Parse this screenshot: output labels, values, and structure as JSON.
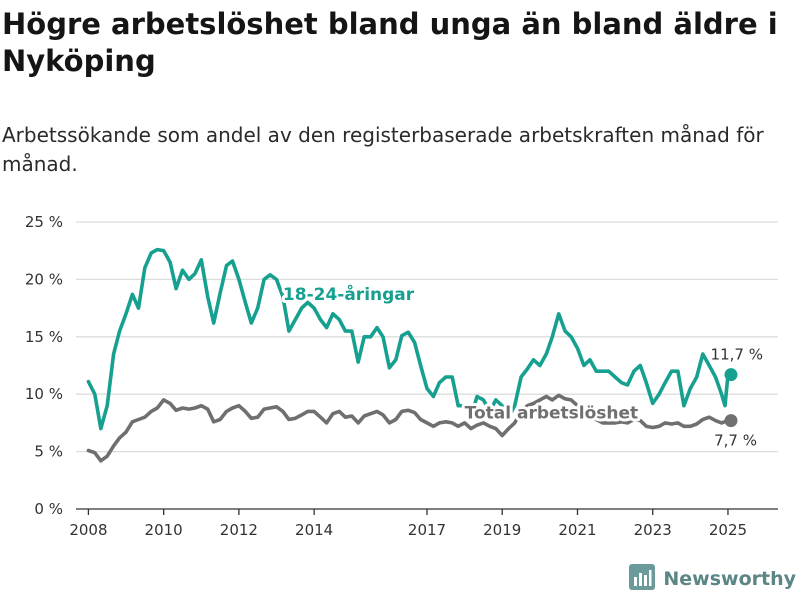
{
  "header": {
    "title": "Högre arbetslöshet bland unga än bland äldre i Nyköping",
    "subtitle": "Arbetssökande som andel av den registerbaserade arbetskraften månad för månad."
  },
  "brand": {
    "name": "Newsworthy",
    "logo_icon": "bar-chart-logo-icon"
  },
  "chart_data": {
    "type": "line",
    "title": "Högre arbetslöshet bland unga än bland äldre i Nyköping",
    "subtitle": "Arbetssökande som andel av den registerbaserade arbetskraften månad för månad.",
    "xlabel": "",
    "ylabel": "",
    "xlim": [
      2007.67,
      2026.33
    ],
    "ylim": [
      0,
      25
    ],
    "y_ticks": [
      0,
      5,
      10,
      15,
      20,
      25
    ],
    "y_tick_labels": [
      "0 %",
      "5 %",
      "10 %",
      "15 %",
      "20 %",
      "25 %"
    ],
    "x_ticks": [
      2008,
      2010,
      2012,
      2014,
      2017,
      2019,
      2021,
      2023,
      2025
    ],
    "x_tick_labels": [
      "2008",
      "2010",
      "2012",
      "2014",
      "2017",
      "2019",
      "2021",
      "2023",
      "2025"
    ],
    "grid": "horizontal",
    "legend": "inline labels",
    "series": [
      {
        "name": "18-24-åringar",
        "color": "#16a08f",
        "label": "18-24-åringar",
        "end_label": "11,7 %",
        "points": [
          [
            2008.0,
            11.1
          ],
          [
            2008.17,
            10.0
          ],
          [
            2008.33,
            7.0
          ],
          [
            2008.5,
            9.0
          ],
          [
            2008.67,
            13.5
          ],
          [
            2008.83,
            15.5
          ],
          [
            2009.0,
            17.0
          ],
          [
            2009.17,
            18.7
          ],
          [
            2009.33,
            17.5
          ],
          [
            2009.5,
            21.0
          ],
          [
            2009.67,
            22.3
          ],
          [
            2009.83,
            22.6
          ],
          [
            2010.0,
            22.5
          ],
          [
            2010.17,
            21.5
          ],
          [
            2010.33,
            19.2
          ],
          [
            2010.5,
            20.8
          ],
          [
            2010.67,
            20.0
          ],
          [
            2010.83,
            20.5
          ],
          [
            2011.0,
            21.7
          ],
          [
            2011.17,
            18.5
          ],
          [
            2011.33,
            16.2
          ],
          [
            2011.5,
            18.8
          ],
          [
            2011.67,
            21.2
          ],
          [
            2011.83,
            21.6
          ],
          [
            2012.0,
            20.0
          ],
          [
            2012.17,
            18.0
          ],
          [
            2012.33,
            16.2
          ],
          [
            2012.5,
            17.5
          ],
          [
            2012.67,
            20.0
          ],
          [
            2012.83,
            20.4
          ],
          [
            2013.0,
            20.0
          ],
          [
            2013.17,
            18.5
          ],
          [
            2013.33,
            15.5
          ],
          [
            2013.5,
            16.5
          ],
          [
            2013.67,
            17.5
          ],
          [
            2013.83,
            18.0
          ],
          [
            2014.0,
            17.5
          ],
          [
            2014.17,
            16.5
          ],
          [
            2014.33,
            15.8
          ],
          [
            2014.5,
            17.0
          ],
          [
            2014.67,
            16.5
          ],
          [
            2014.83,
            15.5
          ],
          [
            2015.0,
            15.5
          ],
          [
            2015.17,
            12.8
          ],
          [
            2015.33,
            15.0
          ],
          [
            2015.5,
            15.0
          ],
          [
            2015.67,
            15.8
          ],
          [
            2015.83,
            15.0
          ],
          [
            2016.0,
            12.3
          ],
          [
            2016.17,
            13.0
          ],
          [
            2016.33,
            15.1
          ],
          [
            2016.5,
            15.4
          ],
          [
            2016.67,
            14.5
          ],
          [
            2016.83,
            12.5
          ],
          [
            2017.0,
            10.5
          ],
          [
            2017.17,
            9.8
          ],
          [
            2017.33,
            11.0
          ],
          [
            2017.5,
            11.5
          ],
          [
            2017.67,
            11.5
          ],
          [
            2017.83,
            9.0
          ],
          [
            2018.0,
            9.0
          ],
          [
            2018.17,
            8.0
          ],
          [
            2018.33,
            9.8
          ],
          [
            2018.5,
            9.5
          ],
          [
            2018.67,
            8.5
          ],
          [
            2018.83,
            9.5
          ],
          [
            2019.0,
            9.0
          ],
          [
            2019.17,
            8.0
          ],
          [
            2019.33,
            9.0
          ],
          [
            2019.5,
            11.5
          ],
          [
            2019.67,
            12.2
          ],
          [
            2019.83,
            13.0
          ],
          [
            2020.0,
            12.5
          ],
          [
            2020.17,
            13.5
          ],
          [
            2020.33,
            15.0
          ],
          [
            2020.5,
            17.0
          ],
          [
            2020.67,
            15.5
          ],
          [
            2020.83,
            15.0
          ],
          [
            2021.0,
            14.0
          ],
          [
            2021.17,
            12.5
          ],
          [
            2021.33,
            13.0
          ],
          [
            2021.5,
            12.0
          ],
          [
            2021.67,
            12.0
          ],
          [
            2021.83,
            12.0
          ],
          [
            2022.0,
            11.5
          ],
          [
            2022.17,
            11.0
          ],
          [
            2022.33,
            10.8
          ],
          [
            2022.5,
            12.0
          ],
          [
            2022.67,
            12.5
          ],
          [
            2022.83,
            11.0
          ],
          [
            2023.0,
            9.2
          ],
          [
            2023.17,
            10.0
          ],
          [
            2023.33,
            11.0
          ],
          [
            2023.5,
            12.0
          ],
          [
            2023.67,
            12.0
          ],
          [
            2023.83,
            9.0
          ],
          [
            2024.0,
            10.5
          ],
          [
            2024.17,
            11.5
          ],
          [
            2024.33,
            13.5
          ],
          [
            2024.5,
            12.5
          ],
          [
            2024.67,
            11.5
          ],
          [
            2024.83,
            10.0
          ],
          [
            2024.92,
            9.0
          ],
          [
            2025.0,
            11.7
          ],
          [
            2025.08,
            11.7
          ]
        ]
      },
      {
        "name": "Total arbetslöshet",
        "color": "#6f6f6f",
        "label": "Total arbetslöshet",
        "end_label": "7,7 %",
        "points": [
          [
            2008.0,
            5.1
          ],
          [
            2008.17,
            4.9
          ],
          [
            2008.33,
            4.2
          ],
          [
            2008.5,
            4.6
          ],
          [
            2008.67,
            5.5
          ],
          [
            2008.83,
            6.2
          ],
          [
            2009.0,
            6.7
          ],
          [
            2009.17,
            7.6
          ],
          [
            2009.33,
            7.8
          ],
          [
            2009.5,
            8.0
          ],
          [
            2009.67,
            8.5
          ],
          [
            2009.83,
            8.8
          ],
          [
            2010.0,
            9.5
          ],
          [
            2010.17,
            9.2
          ],
          [
            2010.33,
            8.6
          ],
          [
            2010.5,
            8.8
          ],
          [
            2010.67,
            8.7
          ],
          [
            2010.83,
            8.8
          ],
          [
            2011.0,
            9.0
          ],
          [
            2011.17,
            8.7
          ],
          [
            2011.33,
            7.6
          ],
          [
            2011.5,
            7.8
          ],
          [
            2011.67,
            8.5
          ],
          [
            2011.83,
            8.8
          ],
          [
            2012.0,
            9.0
          ],
          [
            2012.17,
            8.5
          ],
          [
            2012.33,
            7.9
          ],
          [
            2012.5,
            8.0
          ],
          [
            2012.67,
            8.7
          ],
          [
            2012.83,
            8.8
          ],
          [
            2013.0,
            8.9
          ],
          [
            2013.17,
            8.5
          ],
          [
            2013.33,
            7.8
          ],
          [
            2013.5,
            7.9
          ],
          [
            2013.67,
            8.2
          ],
          [
            2013.83,
            8.5
          ],
          [
            2014.0,
            8.5
          ],
          [
            2014.17,
            8.0
          ],
          [
            2014.33,
            7.5
          ],
          [
            2014.5,
            8.3
          ],
          [
            2014.67,
            8.5
          ],
          [
            2014.83,
            8.0
          ],
          [
            2015.0,
            8.1
          ],
          [
            2015.17,
            7.5
          ],
          [
            2015.33,
            8.1
          ],
          [
            2015.5,
            8.3
          ],
          [
            2015.67,
            8.5
          ],
          [
            2015.83,
            8.2
          ],
          [
            2016.0,
            7.5
          ],
          [
            2016.17,
            7.8
          ],
          [
            2016.33,
            8.5
          ],
          [
            2016.5,
            8.6
          ],
          [
            2016.67,
            8.4
          ],
          [
            2016.83,
            7.8
          ],
          [
            2017.0,
            7.5
          ],
          [
            2017.17,
            7.2
          ],
          [
            2017.33,
            7.5
          ],
          [
            2017.5,
            7.6
          ],
          [
            2017.67,
            7.5
          ],
          [
            2017.83,
            7.2
          ],
          [
            2018.0,
            7.5
          ],
          [
            2018.17,
            7.0
          ],
          [
            2018.33,
            7.3
          ],
          [
            2018.5,
            7.5
          ],
          [
            2018.67,
            7.2
          ],
          [
            2018.83,
            7.0
          ],
          [
            2019.0,
            6.4
          ],
          [
            2019.17,
            7.0
          ],
          [
            2019.33,
            7.5
          ],
          [
            2019.5,
            8.5
          ],
          [
            2019.67,
            9.0
          ],
          [
            2019.83,
            9.2
          ],
          [
            2020.0,
            9.5
          ],
          [
            2020.17,
            9.8
          ],
          [
            2020.33,
            9.5
          ],
          [
            2020.5,
            9.9
          ],
          [
            2020.67,
            9.6
          ],
          [
            2020.83,
            9.5
          ],
          [
            2021.0,
            9.0
          ],
          [
            2021.17,
            8.5
          ],
          [
            2021.33,
            8.0
          ],
          [
            2021.5,
            7.8
          ],
          [
            2021.67,
            7.5
          ],
          [
            2021.83,
            7.5
          ],
          [
            2022.0,
            7.5
          ],
          [
            2022.17,
            7.6
          ],
          [
            2022.33,
            7.5
          ],
          [
            2022.5,
            7.8
          ],
          [
            2022.67,
            7.7
          ],
          [
            2022.83,
            7.2
          ],
          [
            2023.0,
            7.1
          ],
          [
            2023.17,
            7.2
          ],
          [
            2023.33,
            7.5
          ],
          [
            2023.5,
            7.4
          ],
          [
            2023.67,
            7.5
          ],
          [
            2023.83,
            7.2
          ],
          [
            2024.0,
            7.2
          ],
          [
            2024.17,
            7.4
          ],
          [
            2024.33,
            7.8
          ],
          [
            2024.5,
            8.0
          ],
          [
            2024.67,
            7.7
          ],
          [
            2024.83,
            7.5
          ],
          [
            2025.0,
            7.7
          ],
          [
            2025.08,
            7.7
          ]
        ]
      }
    ],
    "annotations": [
      {
        "text": "18-24-åringar",
        "series": "18-24-åringar",
        "x": 2013.17,
        "y": 18.2
      },
      {
        "text": "Total arbetslöshet",
        "series": "Total arbetslöshet",
        "x": 2018.0,
        "y": 7.9
      }
    ]
  }
}
